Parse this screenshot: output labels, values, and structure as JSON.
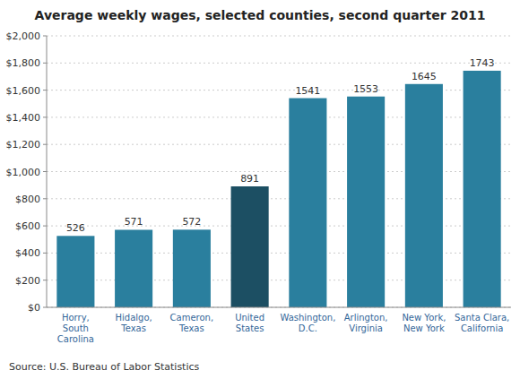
{
  "chart_data": {
    "type": "bar",
    "title": "Average weekly wages, selected counties, second quarter 2011",
    "categories": [
      "Horry,\nSouth\nCarolina",
      "Hidalgo,\nTexas",
      "Cameron,\nTexas",
      "United\nStates",
      "Washington,\nD.C.",
      "Arlington,\nVirginia",
      "New York,\nNew York",
      "Santa Clara,\nCalifornia"
    ],
    "values": [
      526,
      571,
      572,
      891,
      1541,
      1553,
      1645,
      1743
    ],
    "colors": [
      "#2a7f9e",
      "#2a7f9e",
      "#2a7f9e",
      "#1c4f63",
      "#2a7f9e",
      "#2a7f9e",
      "#2a7f9e",
      "#2a7f9e"
    ],
    "ylim": [
      0,
      2000
    ],
    "yticks": [
      {
        "value": 0,
        "label": "$0"
      },
      {
        "value": 200,
        "label": "$200"
      },
      {
        "value": 400,
        "label": "$400"
      },
      {
        "value": 600,
        "label": "$600"
      },
      {
        "value": 800,
        "label": "$800"
      },
      {
        "value": 1000,
        "label": "$1,000"
      },
      {
        "value": 1200,
        "label": "$1,200"
      },
      {
        "value": 1400,
        "label": "$1,400"
      },
      {
        "value": 1600,
        "label": "$1,600"
      },
      {
        "value": 1800,
        "label": "$1,800"
      },
      {
        "value": 2000,
        "label": "$2,000"
      }
    ],
    "grid": true,
    "data_labels": true,
    "source": "Source: U.S. Bureau of Labor Statistics"
  }
}
